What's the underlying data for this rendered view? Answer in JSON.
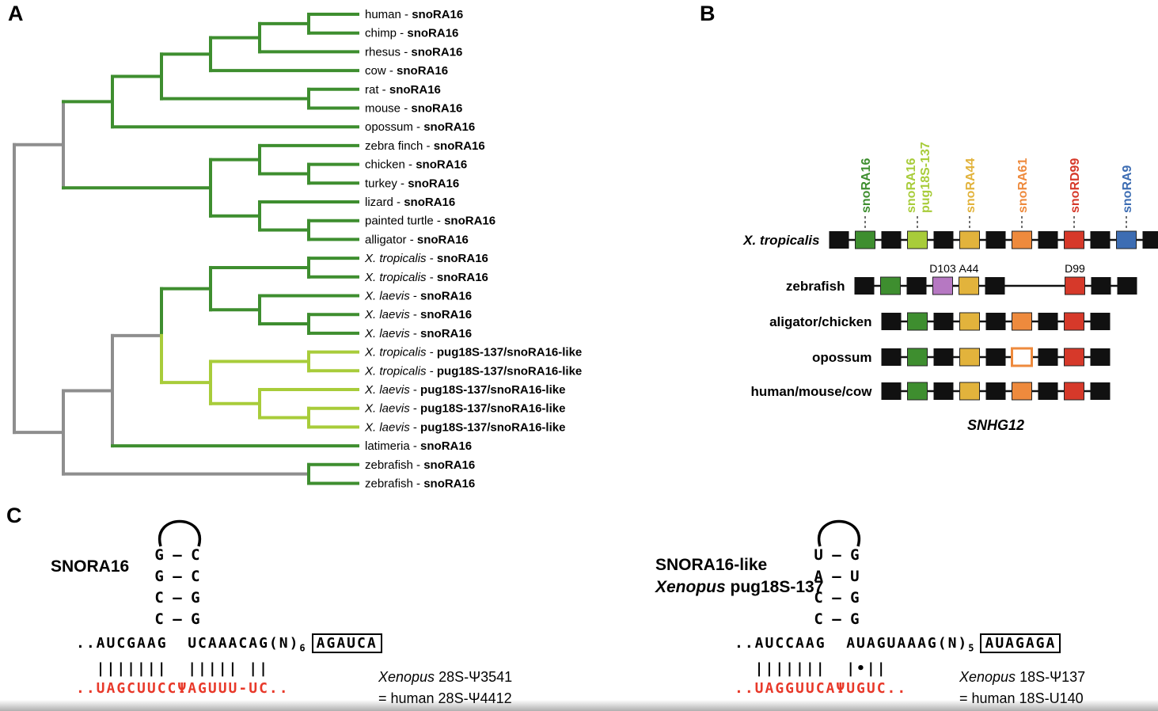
{
  "panels": {
    "a": "A",
    "b": "B",
    "c": "C"
  },
  "colors": {
    "dark_green": "#3e8e2f",
    "light_green": "#a8cc3a",
    "gray": "#8e8e8e",
    "yellow": "#e2b33c",
    "orange": "#ee8a3d",
    "red": "#d6392a",
    "blue": "#3d6db3",
    "purple": "#b678c2",
    "black": "#111111",
    "seq_red": "#e8392a"
  },
  "tree": {
    "color": "gray",
    "children": [
      {
        "color": "gray",
        "children": [
          {
            "color": "dark_green",
            "children": [
              {
                "color": "dark_green",
                "children": [
                  {
                    "color": "dark_green",
                    "children": [
                      {
                        "color": "dark_green",
                        "children": [
                          {
                            "color": "dark_green",
                            "children": [
                              {
                                "leaf": true,
                                "species": "human",
                                "gene": "snoRA16",
                                "color": "dark_green"
                              },
                              {
                                "leaf": true,
                                "species": "chimp",
                                "gene": "snoRA16",
                                "color": "dark_green"
                              }
                            ]
                          },
                          {
                            "leaf": true,
                            "species": "rhesus",
                            "gene": "snoRA16",
                            "color": "dark_green"
                          }
                        ]
                      },
                      {
                        "leaf": true,
                        "species": "cow",
                        "gene": "snoRA16",
                        "color": "dark_green"
                      }
                    ]
                  },
                  {
                    "color": "dark_green",
                    "children": [
                      {
                        "leaf": true,
                        "species": "rat",
                        "gene": "snoRA16",
                        "color": "dark_green"
                      },
                      {
                        "leaf": true,
                        "species": "mouse",
                        "gene": "snoRA16",
                        "color": "dark_green"
                      }
                    ]
                  }
                ]
              },
              {
                "leaf": true,
                "species": "opossum",
                "gene": "snoRA16",
                "color": "dark_green"
              }
            ]
          },
          {
            "color": "dark_green",
            "children": [
              {
                "color": "dark_green",
                "children": [
                  {
                    "leaf": true,
                    "species": "zebra finch",
                    "gene": "snoRA16",
                    "color": "dark_green"
                  },
                  {
                    "color": "dark_green",
                    "children": [
                      {
                        "leaf": true,
                        "species": "chicken",
                        "gene": "snoRA16",
                        "color": "dark_green"
                      },
                      {
                        "leaf": true,
                        "species": "turkey",
                        "gene": "snoRA16",
                        "color": "dark_green"
                      }
                    ]
                  }
                ]
              },
              {
                "color": "dark_green",
                "children": [
                  {
                    "leaf": true,
                    "species": "lizard",
                    "gene": "snoRA16",
                    "color": "dark_green"
                  },
                  {
                    "color": "dark_green",
                    "children": [
                      {
                        "leaf": true,
                        "species": "painted turtle",
                        "gene": "snoRA16",
                        "color": "dark_green"
                      },
                      {
                        "leaf": true,
                        "species": "alligator",
                        "gene": "snoRA16",
                        "color": "dark_green"
                      }
                    ]
                  }
                ]
              }
            ]
          }
        ]
      },
      {
        "color": "gray",
        "children": [
          {
            "color": "gray",
            "children": [
              {
                "color": "split",
                "hcolor": "gray",
                "children": [
                  {
                    "color": "dark_green",
                    "children": [
                      {
                        "color": "dark_green",
                        "children": [
                          {
                            "leaf": true,
                            "species": "X. tropicalis",
                            "italic": true,
                            "gene": "snoRA16",
                            "color": "dark_green"
                          },
                          {
                            "leaf": true,
                            "species": "X. tropicalis",
                            "italic": true,
                            "gene": "snoRA16",
                            "color": "dark_green"
                          }
                        ]
                      },
                      {
                        "color": "dark_green",
                        "children": [
                          {
                            "leaf": true,
                            "species": "X. laevis",
                            "italic": true,
                            "gene": "snoRA16",
                            "color": "dark_green"
                          },
                          {
                            "color": "dark_green",
                            "children": [
                              {
                                "leaf": true,
                                "species": "X. laevis",
                                "italic": true,
                                "gene": "snoRA16",
                                "color": "dark_green"
                              },
                              {
                                "leaf": true,
                                "species": "X. laevis",
                                "italic": true,
                                "gene": "snoRA16",
                                "color": "dark_green"
                              }
                            ]
                          }
                        ]
                      }
                    ]
                  },
                  {
                    "color": "light_green",
                    "children": [
                      {
                        "color": "light_green",
                        "children": [
                          {
                            "leaf": true,
                            "species": "X. tropicalis",
                            "italic": true,
                            "gene": "pug18S-137/snoRA16-like",
                            "color": "light_green"
                          },
                          {
                            "leaf": true,
                            "species": "X. tropicalis",
                            "italic": true,
                            "gene": "pug18S-137/snoRA16-like",
                            "color": "light_green"
                          }
                        ]
                      },
                      {
                        "color": "light_green",
                        "children": [
                          {
                            "leaf": true,
                            "species": "X. laevis",
                            "italic": true,
                            "gene": "pug18S-137/snoRA16-like",
                            "color": "light_green"
                          },
                          {
                            "color": "light_green",
                            "children": [
                              {
                                "leaf": true,
                                "species": "X. laevis",
                                "italic": true,
                                "gene": "pug18S-137/snoRA16-like",
                                "color": "light_green"
                              },
                              {
                                "leaf": true,
                                "species": "X. laevis",
                                "italic": true,
                                "gene": "pug18S-137/snoRA16-like",
                                "color": "light_green"
                              }
                            ]
                          }
                        ]
                      }
                    ]
                  }
                ]
              },
              {
                "leaf": true,
                "species": "latimeria",
                "gene": "snoRA16",
                "color": "dark_green"
              }
            ]
          },
          {
            "color": "dark_green",
            "hcolor": "gray",
            "children": [
              {
                "leaf": true,
                "species": "zebrafish",
                "gene": "snoRA16",
                "color": "dark_green"
              },
              {
                "leaf": true,
                "species": "zebrafish",
                "gene": "snoRA16",
                "color": "dark_green"
              }
            ]
          }
        ]
      }
    ]
  },
  "panel_b": {
    "column_labels": [
      {
        "lines": [
          "snoRA16"
        ],
        "color": "dark_green"
      },
      {
        "lines": [
          "snoRA16",
          "pug18S-137"
        ],
        "color": "light_green"
      },
      {
        "lines": [
          "snoRA44"
        ],
        "color": "yellow"
      },
      {
        "lines": [
          "snoRA61"
        ],
        "color": "orange"
      },
      {
        "lines": [
          "snoRD99"
        ],
        "color": "red"
      },
      {
        "lines": [
          "snoRA9"
        ],
        "color": "blue"
      }
    ],
    "rows": [
      {
        "name": "X. tropicalis",
        "italic": true,
        "items": [
          "black",
          "green",
          "black",
          "lightgreen",
          "black",
          "yellow",
          "black",
          "orange",
          "black",
          "red",
          "black",
          "blue",
          "black"
        ]
      },
      {
        "name": "zebrafish",
        "italic": false,
        "items": [
          "black",
          "green",
          "black",
          "purple",
          "yellow",
          "black",
          "gap",
          "red",
          "black",
          "black"
        ],
        "annotations": [
          {
            "text": "D103",
            "item": 3
          },
          {
            "text": "A44",
            "item": 4
          },
          {
            "text": "D99",
            "item": 7
          }
        ]
      },
      {
        "name": "aligator/chicken",
        "italic": false,
        "items": [
          "black",
          "green",
          "black",
          "yellow",
          "black",
          "orange",
          "black",
          "red",
          "black"
        ]
      },
      {
        "name": "opossum",
        "italic": false,
        "items": [
          "black",
          "green",
          "black",
          "yellow",
          "black",
          "orange_hollow",
          "black",
          "red",
          "black"
        ]
      },
      {
        "name": "human/mouse/cow",
        "italic": false,
        "items": [
          "black",
          "green",
          "black",
          "yellow",
          "black",
          "orange",
          "black",
          "red",
          "black"
        ]
      }
    ],
    "gene_label": "SNHG12"
  },
  "panel_c": {
    "left": {
      "title": "SNORA16",
      "stem_rows": [
        "G — C",
        "G — C",
        "C — G",
        "C — G"
      ],
      "seq_top_main": "..AUCGAAG  UCAAACAG(N)",
      "seq_top_sub": "6",
      "seq_top_boxed": "AGAUCA",
      "bars": "  |||||||  ||||| ||",
      "seq_bottom": "..UAGCUUCCΨAGUUU-UC..",
      "ann_italic": "Xenopus",
      "ann_rest": " 28S-Ψ3541",
      "ann_line2": "= human 28S-Ψ4412"
    },
    "right": {
      "title_line1": "SNORA16-like",
      "title_line2_italic": "Xenopus",
      "title_line2_rest": " pug18S-137",
      "stem_rows": [
        "U — G",
        "A — U",
        "C — G",
        "C — G"
      ],
      "seq_top_main": "..AUCCAAG  AUAGUAAAG(N)",
      "seq_top_sub": "5",
      "seq_top_boxed": "AUAGAGA",
      "bars": "  |||||||  |•||",
      "seq_bottom": "..UAGGUUCAΨUGUC..",
      "ann_italic": "Xenopus",
      "ann_rest": " 18S-Ψ137",
      "ann_line2": "= human 18S-U140"
    }
  }
}
